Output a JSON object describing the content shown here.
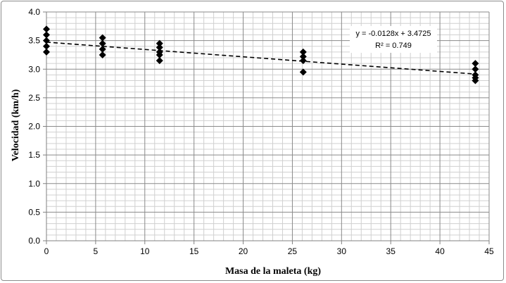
{
  "chart_data": {
    "type": "scatter",
    "xlabel": "Masa de la maleta (kg)",
    "ylabel": "Velocidad (km/h)",
    "xlim": [
      0,
      45
    ],
    "ylim": [
      0,
      4
    ],
    "x_ticks": [
      "0",
      "5",
      "10",
      "15",
      "20",
      "25",
      "30",
      "35",
      "40",
      "45"
    ],
    "y_ticks": [
      "0.0",
      "0.5",
      "1.0",
      "1.5",
      "2.0",
      "2.5",
      "3.0",
      "3.5",
      "4.0"
    ],
    "grid": true,
    "marker": "diamond",
    "marker_color": "#000000",
    "points": [
      {
        "x": 0,
        "y": 3.7
      },
      {
        "x": 0,
        "y": 3.6
      },
      {
        "x": 0,
        "y": 3.5
      },
      {
        "x": 0,
        "y": 3.4
      },
      {
        "x": 0,
        "y": 3.3
      },
      {
        "x": 5.7,
        "y": 3.55
      },
      {
        "x": 5.7,
        "y": 3.45
      },
      {
        "x": 5.7,
        "y": 3.35
      },
      {
        "x": 5.7,
        "y": 3.25
      },
      {
        "x": 11.5,
        "y": 3.45
      },
      {
        "x": 11.5,
        "y": 3.38
      },
      {
        "x": 11.5,
        "y": 3.3
      },
      {
        "x": 11.5,
        "y": 3.25
      },
      {
        "x": 11.5,
        "y": 3.15
      },
      {
        "x": 26.1,
        "y": 3.3
      },
      {
        "x": 26.1,
        "y": 3.22
      },
      {
        "x": 26.1,
        "y": 3.15
      },
      {
        "x": 26.1,
        "y": 2.95
      },
      {
        "x": 43.6,
        "y": 3.1
      },
      {
        "x": 43.6,
        "y": 3.0
      },
      {
        "x": 43.6,
        "y": 2.9
      },
      {
        "x": 43.6,
        "y": 2.85
      },
      {
        "x": 43.6,
        "y": 2.8
      }
    ],
    "trendline": {
      "type": "linear",
      "slope": -0.0128,
      "intercept": 3.4725,
      "x_range": [
        0,
        43.6
      ],
      "style": "dashed",
      "equation_text": "y = -0.0128x + 3.4725",
      "r2_text": "R² = 0.749"
    }
  }
}
